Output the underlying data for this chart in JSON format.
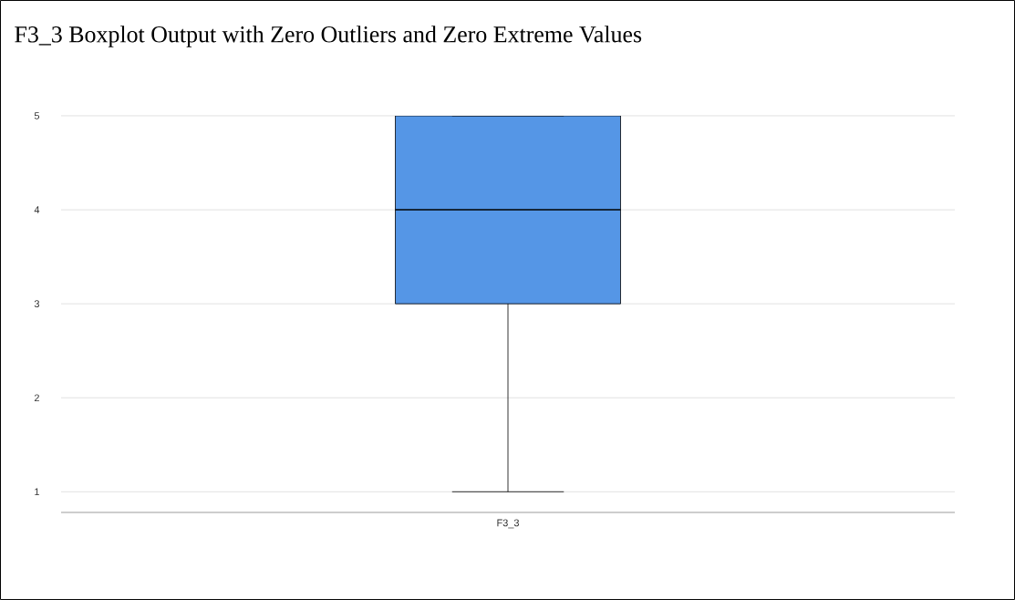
{
  "chart_data": {
    "type": "box",
    "title": "F3_3 Boxplot Output with Zero Outliers and Zero Extreme Values",
    "categories": [
      "F3_3"
    ],
    "boxes": [
      {
        "low": 1,
        "q1": 3,
        "median": 4,
        "q3": 5,
        "high": 5
      }
    ],
    "color": "#5596e6",
    "ylim": [
      0.78,
      5
    ],
    "yticks": [
      1,
      2,
      3,
      4,
      5
    ],
    "grid": "y"
  }
}
